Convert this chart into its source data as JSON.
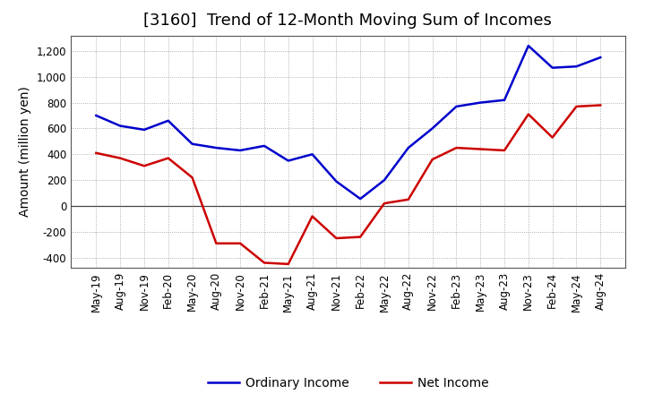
{
  "title": "[3160]  Trend of 12-Month Moving Sum of Incomes",
  "ylabel": "Amount (million yen)",
  "ylim": [
    -480,
    1320
  ],
  "yticks": [
    -400,
    -200,
    0,
    200,
    400,
    600,
    800,
    1000,
    1200
  ],
  "background_color": "#ffffff",
  "grid_color": "#999999",
  "labels": [
    "May-19",
    "Aug-19",
    "Nov-19",
    "Feb-20",
    "May-20",
    "Aug-20",
    "Nov-20",
    "Feb-21",
    "May-21",
    "Aug-21",
    "Nov-21",
    "Feb-22",
    "May-22",
    "Aug-22",
    "Nov-22",
    "Feb-23",
    "May-23",
    "Aug-23",
    "Nov-23",
    "Feb-24",
    "May-24",
    "Aug-24"
  ],
  "ordinary_income": [
    700,
    620,
    590,
    660,
    480,
    450,
    430,
    465,
    350,
    400,
    190,
    55,
    200,
    450,
    600,
    770,
    800,
    820,
    1240,
    1070,
    1080,
    1150
  ],
  "net_income": [
    410,
    370,
    310,
    370,
    220,
    -290,
    -290,
    -440,
    -450,
    -80,
    -250,
    -240,
    20,
    50,
    360,
    450,
    440,
    430,
    710,
    530,
    770,
    780
  ],
  "ordinary_color": "#0000cc",
  "net_color": "#cc0000",
  "ordinary_label": "Ordinary Income",
  "net_label": "Net Income",
  "title_fontsize": 13,
  "ylabel_fontsize": 10,
  "tick_fontsize": 8.5,
  "legend_fontsize": 10
}
